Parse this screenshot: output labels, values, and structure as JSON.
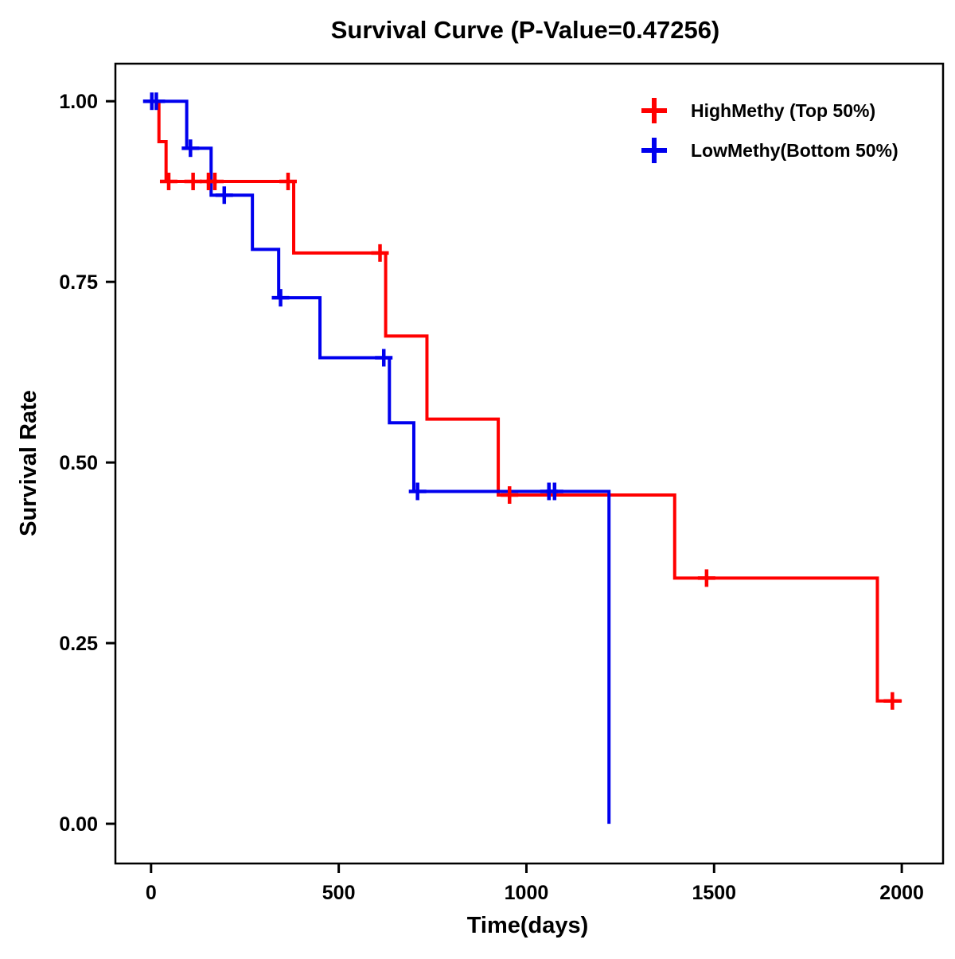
{
  "title": "Survival Curve (P-Value=0.47256)",
  "chart_data": {
    "type": "line",
    "subtype": "kaplan_meier_step_curve",
    "title": "Survival Curve (P-Value=0.47256)",
    "xlabel": "Time(days)",
    "ylabel": "Survival Rate",
    "xlim": [
      -95,
      2110
    ],
    "ylim": [
      -0.055,
      1.052
    ],
    "grid": false,
    "legend_position": "top-right",
    "xticks": [
      {
        "v": 0,
        "label": "0"
      },
      {
        "v": 500,
        "label": "500"
      },
      {
        "v": 1000,
        "label": "1000"
      },
      {
        "v": 1500,
        "label": "1500"
      },
      {
        "v": 2000,
        "label": "2000"
      }
    ],
    "yticks": [
      {
        "v": 0.0,
        "label": "0.00"
      },
      {
        "v": 0.25,
        "label": "0.25"
      },
      {
        "v": 0.5,
        "label": "0.50"
      },
      {
        "v": 0.75,
        "label": "0.75"
      },
      {
        "v": 1.0,
        "label": "1.00"
      }
    ],
    "series": [
      {
        "name": "HighMethy (Top 50%)",
        "color": "#FF0000",
        "steps": [
          [
            0,
            1.0
          ],
          [
            21,
            0.944
          ],
          [
            40,
            0.889
          ],
          [
            380,
            0.79
          ],
          [
            625,
            0.675
          ],
          [
            735,
            0.56
          ],
          [
            925,
            0.455
          ],
          [
            1395,
            0.34
          ],
          [
            1935,
            0.17
          ],
          [
            2000,
            0.17
          ]
        ],
        "censors": [
          [
            47,
            0.889
          ],
          [
            112,
            0.889
          ],
          [
            153,
            0.889
          ],
          [
            170,
            0.889
          ],
          [
            365,
            0.889
          ],
          [
            610,
            0.79
          ],
          [
            955,
            0.455
          ],
          [
            1480,
            0.34
          ],
          [
            1975,
            0.17
          ]
        ]
      },
      {
        "name": "LowMethy(Bottom 50%)",
        "color": "#0000EE",
        "steps": [
          [
            0,
            1.0
          ],
          [
            95,
            0.935
          ],
          [
            160,
            0.87
          ],
          [
            270,
            0.795
          ],
          [
            340,
            0.728
          ],
          [
            450,
            0.645
          ],
          [
            635,
            0.555
          ],
          [
            700,
            0.46
          ],
          [
            1220,
            0.46
          ],
          [
            1220,
            0.0
          ]
        ],
        "censors": [
          [
            2,
            1.0
          ],
          [
            14,
            1.0
          ],
          [
            105,
            0.935
          ],
          [
            195,
            0.87
          ],
          [
            345,
            0.728
          ],
          [
            620,
            0.645
          ],
          [
            710,
            0.46
          ],
          [
            1060,
            0.46
          ],
          [
            1075,
            0.46
          ]
        ]
      }
    ]
  }
}
